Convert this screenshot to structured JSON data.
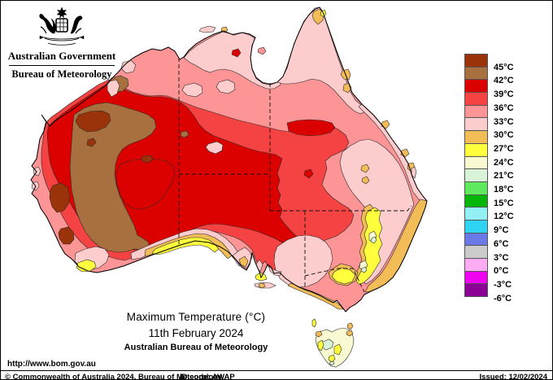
{
  "header": {
    "gov": "Australian Government",
    "bureau": "Bureau of Meteorology"
  },
  "title": {
    "line1": "Maximum Temperature (°C)",
    "line2": "11th February 2024",
    "line3": "Australian Bureau of Meteorology"
  },
  "footer": {
    "url": "http://www.bom.gov.au",
    "copyright": "© Commonwealth of Australia 2024, Bureau of Meteorology",
    "id_code": "ID code: AWAP",
    "issued": "Issued: 12/02/2024"
  },
  "colors": {
    "ocean": "#ffffff",
    "above45": "#9a3309",
    "b42_45": "#a8703e",
    "b39_42": "#db0100",
    "b36_39": "#f54242",
    "b33_36": "#fd9596",
    "b30_33": "#fdcccd",
    "b27_30": "#f2bd57",
    "b24_27": "#ffff3d",
    "b21_24": "#fafad2",
    "b18_21": "#d9f3d9",
    "b15_18": "#5fe95f",
    "b12_15": "#06b606",
    "b9_12": "#93f0f5",
    "b6_9": "#2ed4f2",
    "b3_6": "#6b79e6",
    "b0_3": "#cbcbcb",
    "bm3_0": "#fdabf2",
    "bm6_m3": "#ef04ef",
    "below_m6": "#8c0195"
  },
  "legend": {
    "entries": [
      {
        "color": "#9a3309",
        "label": "45°C"
      },
      {
        "color": "#a8703e",
        "label": "42°C"
      },
      {
        "color": "#db0100",
        "label": "39°C"
      },
      {
        "color": "#f54242",
        "label": "36°C"
      },
      {
        "color": "#fd9596",
        "label": "33°C"
      },
      {
        "color": "#fdcccd",
        "label": "30°C"
      },
      {
        "color": "#f2bd57",
        "label": "27°C"
      },
      {
        "color": "#ffff3d",
        "label": "24°C"
      },
      {
        "color": "#fafad2",
        "label": "21°C"
      },
      {
        "color": "#d9f3d9",
        "label": "18°C"
      },
      {
        "color": "#5fe95f",
        "label": "15°C"
      },
      {
        "color": "#06b606",
        "label": "12°C"
      },
      {
        "color": "#93f0f5",
        "label": "9°C"
      },
      {
        "color": "#2ed4f2",
        "label": "6°C"
      },
      {
        "color": "#6b79e6",
        "label": "3°C"
      },
      {
        "color": "#cbcbcb",
        "label": "0°C"
      },
      {
        "color": "#fdabf2",
        "label": "-3°C"
      },
      {
        "color": "#ef04ef",
        "label": "-6°C"
      },
      {
        "color": "#8c0195",
        "label": ""
      }
    ]
  },
  "map": {
    "description": "Maximum temperature analysis map of Australia, 11 February 2024 (AWAP)"
  }
}
